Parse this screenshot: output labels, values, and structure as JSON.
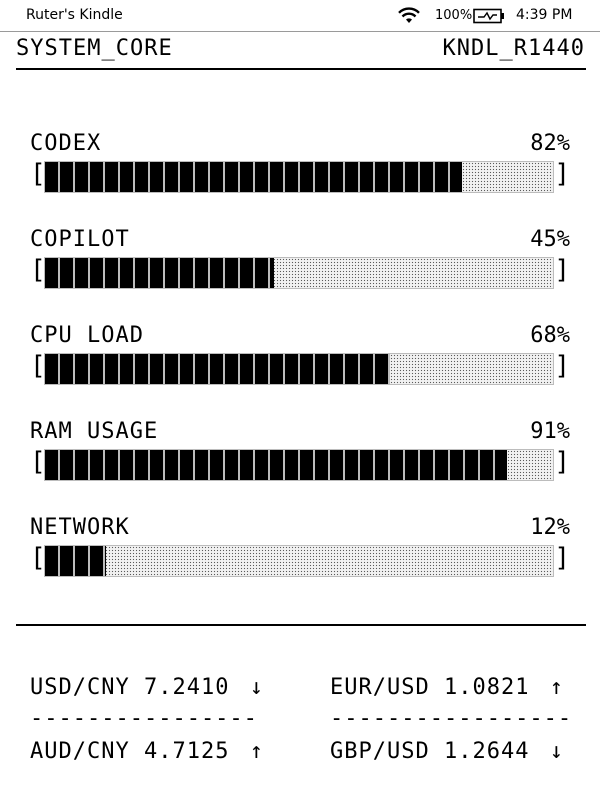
{
  "status": {
    "device_name": "Ruter's Kindle",
    "battery": "100%",
    "time": "4:39 PM"
  },
  "header": {
    "left": "SYSTEM_CORE",
    "right": "KNDL_R1440"
  },
  "meters": [
    {
      "label": "CODEX",
      "value_text": "82%",
      "value": 82
    },
    {
      "label": "COPILOT",
      "value_text": "45%",
      "value": 45
    },
    {
      "label": "CPU LOAD",
      "value_text": "68%",
      "value": 68
    },
    {
      "label": "RAM USAGE",
      "value_text": "91%",
      "value": 91
    },
    {
      "label": "NETWORK",
      "value_text": "12%",
      "value": 12
    }
  ],
  "bracket_open": "[",
  "bracket_close": "]",
  "rates": [
    {
      "pair": "USD/CNY",
      "rate": "7.2410",
      "arrow": "↓"
    },
    {
      "pair": "EUR/USD",
      "rate": "1.0821",
      "arrow": "↑"
    },
    {
      "pair": "AUD/CNY",
      "rate": "4.7125",
      "arrow": "↑"
    },
    {
      "pair": "GBP/USD",
      "rate": "1.2644",
      "arrow": "↓"
    }
  ],
  "separator_left": "----------------",
  "separator_right": "-----------------"
}
